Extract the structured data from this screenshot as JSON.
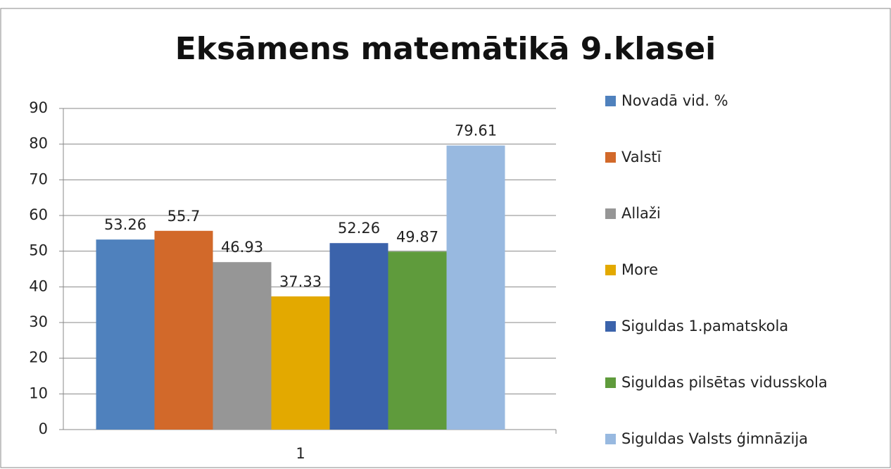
{
  "chart_data": {
    "type": "bar",
    "title": "Eksāmens matemātikā 9.klasei",
    "categories": [
      "1"
    ],
    "series": [
      {
        "name": "Novadā vid. %",
        "color": "#4f81bd",
        "values": [
          53.26
        ]
      },
      {
        "name": "Valstī",
        "color": "#d2692a",
        "values": [
          55.7
        ]
      },
      {
        "name": "Allaži",
        "color": "#969696",
        "values": [
          46.93
        ]
      },
      {
        "name": "More",
        "color": "#e3a900",
        "values": [
          37.33
        ]
      },
      {
        "name": "Siguldas 1.pamatskola",
        "color": "#3b63ab",
        "values": [
          52.26
        ]
      },
      {
        "name": "Siguldas pilsētas vidusskola",
        "color": "#5f9b3c",
        "values": [
          49.87
        ]
      },
      {
        "name": "Siguldas Valsts ģimnāzija",
        "color": "#98b9e0",
        "values": [
          79.61
        ]
      }
    ],
    "ylim": [
      0,
      90
    ],
    "yticks": [
      0,
      10,
      20,
      30,
      40,
      50,
      60,
      70,
      80,
      90
    ],
    "grid": true,
    "legend": "right"
  }
}
